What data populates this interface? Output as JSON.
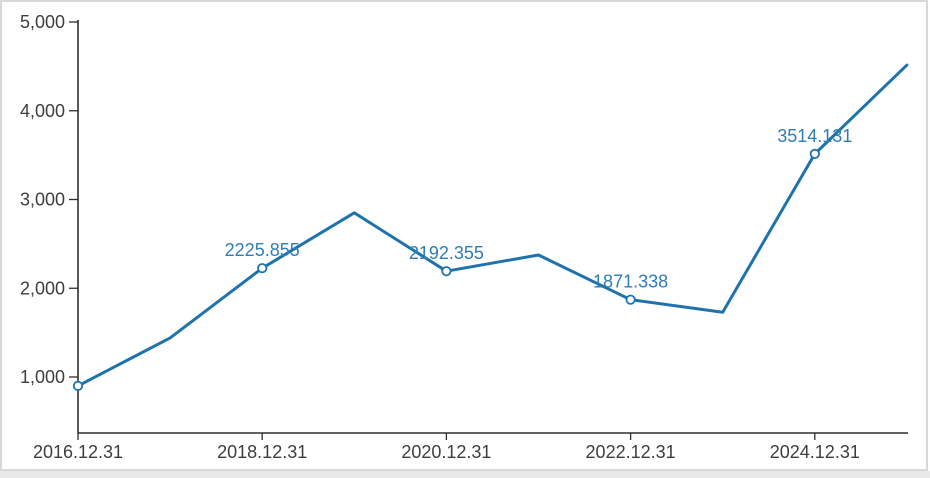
{
  "chart_data": {
    "type": "line",
    "title": "",
    "xlabel": "",
    "ylabel": "",
    "x": [
      "2016.12.31",
      "2017.12.31",
      "2018.12.31",
      "2019.12.31",
      "2020.12.31",
      "2021.12.31",
      "2022.12.31",
      "2023.12.31",
      "2024.12.31",
      "2025.12.31"
    ],
    "values": [
      900,
      1440,
      2225.855,
      2850,
      2192.355,
      2375,
      1871.338,
      1730,
      3514.131,
      4515
    ],
    "point_labels": [
      "",
      "",
      "2225.855",
      "",
      "2192.355",
      "",
      "1871.338",
      "",
      "3514.131",
      ""
    ],
    "markers": [
      true,
      false,
      true,
      false,
      true,
      false,
      true,
      false,
      true,
      false
    ],
    "x_ticks": [
      "2016.12.31",
      "2018.12.31",
      "2020.12.31",
      "2022.12.31",
      "2024.12.31"
    ],
    "y_ticks": [
      "5,000",
      "4,000",
      "3,000",
      "2,000",
      "1,000"
    ],
    "y_tick_values": [
      5000,
      4000,
      3000,
      2000,
      1000
    ],
    "ylim": [
      370,
      5250
    ],
    "grid": false,
    "legend": "none",
    "colors": {
      "line": "#1f73ad",
      "marker_fill": "#ffffff",
      "marker_stroke": "#1f73ad",
      "point_label": "#2e7eb5",
      "axis": "#2e2e2e",
      "tick_text": "#3e3e3e",
      "widget_border": "#d8d8d8",
      "page_strip": "#e9e9e9"
    }
  }
}
